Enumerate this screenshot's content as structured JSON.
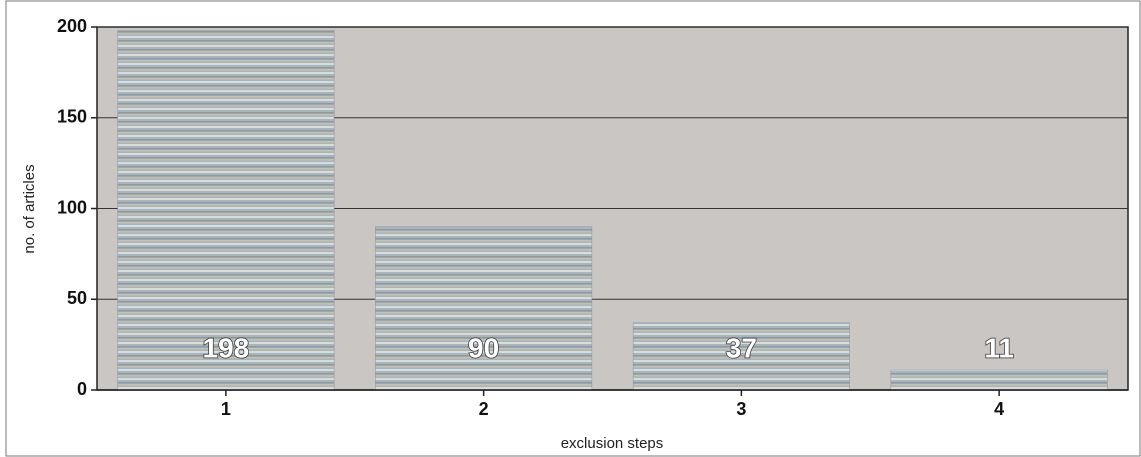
{
  "chart_data": {
    "type": "bar",
    "categories": [
      "1",
      "2",
      "3",
      "4"
    ],
    "values": [
      198,
      90,
      37,
      11
    ],
    "color": "#a9b5bd",
    "ylim": [
      0,
      200
    ],
    "yticks": [
      0,
      50,
      100,
      150,
      200
    ],
    "grid": true,
    "xlabel": "exclusion steps",
    "ylabel": "no. of articles"
  }
}
